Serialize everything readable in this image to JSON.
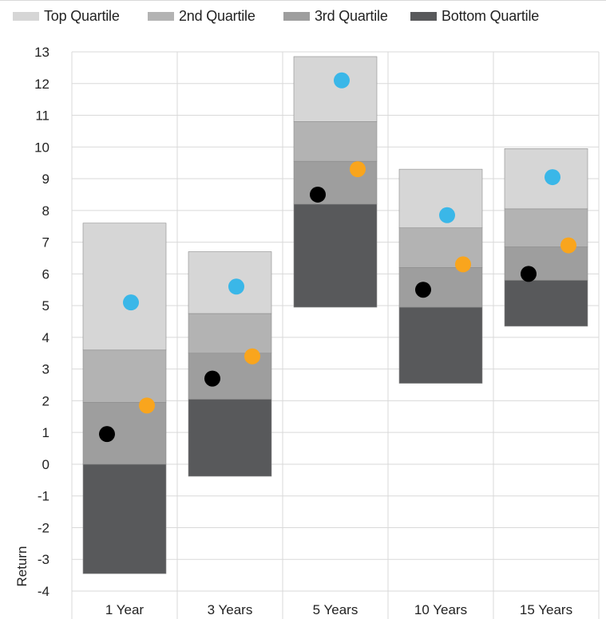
{
  "chart_data": {
    "type": "bar",
    "subtype": "floating-stacked-quartile-range",
    "ylabel": "Return",
    "ylim": [
      -4,
      13
    ],
    "yticks": [
      "13",
      "12",
      "11",
      "10",
      "9",
      "8",
      "7",
      "6",
      "5",
      "4",
      "3",
      "2",
      "1",
      "0",
      "-1",
      "-2",
      "-3",
      "-4"
    ],
    "grid": "on",
    "legend_position": "top",
    "categories": [
      "1 Year",
      "3 Years",
      "5 Years",
      "10 Years",
      "15 Years"
    ],
    "boundaries": [
      [
        -3.45,
        0.0,
        1.95,
        3.6,
        7.6
      ],
      [
        -0.38,
        2.05,
        3.5,
        4.75,
        6.7
      ],
      [
        4.95,
        8.2,
        9.55,
        10.8,
        12.85
      ],
      [
        2.55,
        4.95,
        6.2,
        7.45,
        9.3
      ],
      [
        4.35,
        5.8,
        6.85,
        8.05,
        9.95
      ]
    ],
    "series": [
      {
        "name": "Top Quartile",
        "color": "#d6d6d6"
      },
      {
        "name": "2nd Quartile",
        "color": "#b3b3b3"
      },
      {
        "name": "3rd Quartile",
        "color": "#9e9e9e"
      },
      {
        "name": "Bottom Quartile",
        "color": "#58595b"
      }
    ],
    "markers": [
      {
        "color": "#3ab7e8",
        "values": [
          5.1,
          5.6,
          12.1,
          7.85,
          9.05
        ]
      },
      {
        "color": "#f9a51d",
        "values": [
          1.85,
          3.4,
          9.3,
          6.3,
          6.9
        ]
      },
      {
        "color": "#000000",
        "values": [
          0.95,
          2.7,
          8.5,
          5.5,
          6.0
        ]
      }
    ]
  }
}
